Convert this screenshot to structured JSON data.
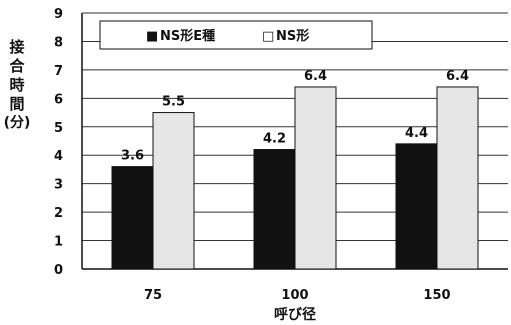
{
  "chart_data": {
    "type": "bar",
    "categories": [
      "75",
      "100",
      "150"
    ],
    "series": [
      {
        "name": "NS形E種",
        "values": [
          3.6,
          4.2,
          4.4
        ],
        "color": "#111111",
        "labels": [
          "3.6",
          "4.2",
          "4.4"
        ]
      },
      {
        "name": "NS形",
        "values": [
          5.5,
          6.4,
          6.4
        ],
        "color": "#e6e6e6",
        "labels": [
          "5.5",
          "6.4",
          "6.4"
        ]
      }
    ],
    "title": "",
    "xlabel": "呼び径",
    "ylabel": "接合時間(分)",
    "ylabel_chars": [
      "接",
      "合",
      "時",
      "間"
    ],
    "ylabel_unit": "(分)",
    "ylim": [
      0,
      9
    ],
    "yticks": [
      "0",
      "1",
      "2",
      "3",
      "4",
      "5",
      "6",
      "7",
      "8",
      "9"
    ],
    "grid": true,
    "legend_position": "top-left",
    "legend_markers": [
      "■",
      "□"
    ]
  }
}
